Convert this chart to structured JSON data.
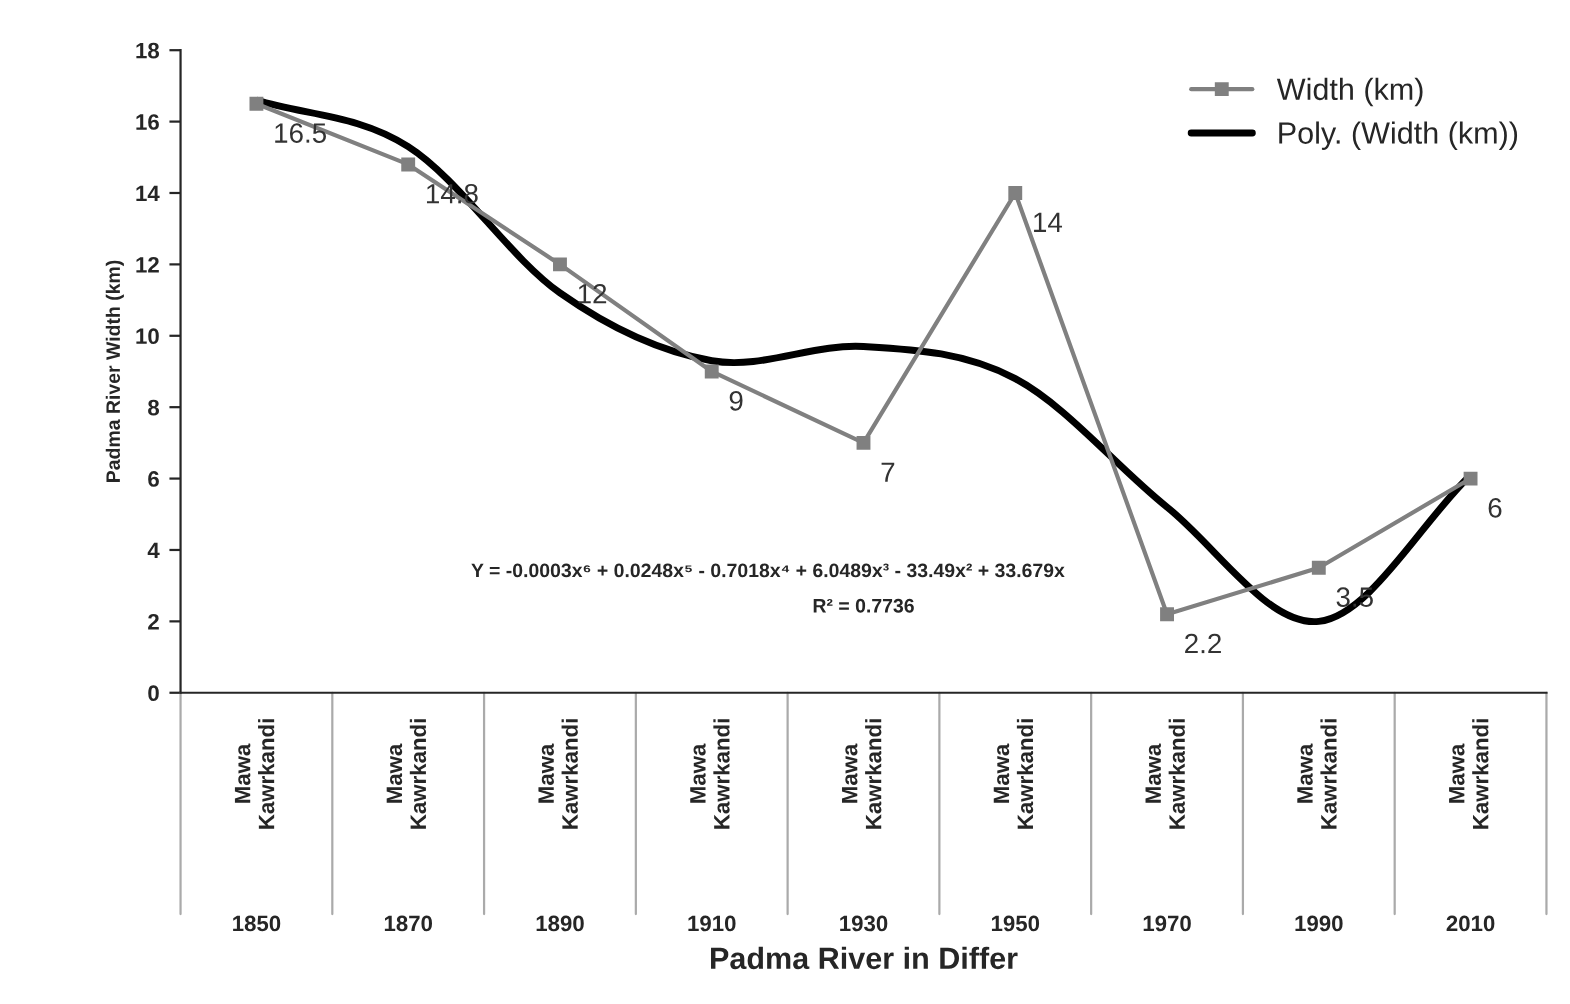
{
  "chart_data": {
    "type": "line",
    "ylabel": "Padma River Width (km)",
    "categories": [
      "1850\nMawa Kawrkandi",
      "1870\nMawa Kawrkandi",
      "1890\nMawa Kawrkandi",
      "1910\nMawa Kawrkandi",
      "1930\nMawa Kawrkandi",
      "1950\nMawa Kawrkandi",
      "1970\nMawa Kawrkandi",
      "1990\nMawa Kawrkandi",
      "2010\nMawa Kawrkandi"
    ],
    "series": [
      {
        "name": "Width (km)",
        "color": "#808080",
        "marker": "square",
        "values": [
          16.5,
          14.8,
          12,
          9,
          7,
          14,
          2.2,
          3.5,
          6
        ],
        "value_labels": [
          "16.5",
          "14.8",
          "12",
          "9",
          "7",
          "14",
          "2.2",
          "3.5",
          "6"
        ]
      },
      {
        "name": "Poly. (Width (km))",
        "type": "line",
        "color": "#000000",
        "marker": "none",
        "values": [
          16.6,
          15.3,
          11.2,
          9.3,
          9.7,
          8.8,
          5.2,
          2.0,
          6.1
        ]
      }
    ],
    "ylim": [
      0,
      18
    ],
    "yticks": [
      0,
      2,
      4,
      6,
      8,
      10,
      12,
      14,
      16,
      18
    ],
    "legend": "top right",
    "annotations": [
      "Y = -0.0003x⁶ + 0.0248x⁵ - 0.7018x⁴ + 6.0489x³ - 33.49x² + 33.679x",
      "R² = 0.7736",
      "Padma River in Differ"
    ]
  }
}
